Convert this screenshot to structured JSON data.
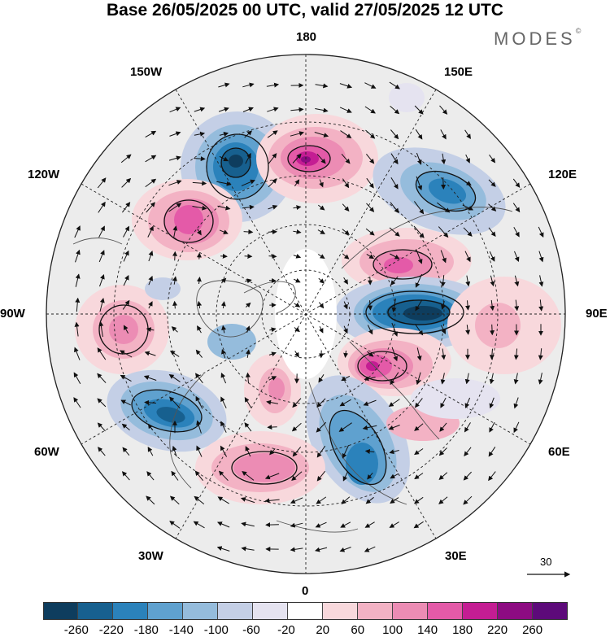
{
  "title": "Base 26/05/2025 00 UTC, valid 27/05/2025 12 UTC",
  "brand": {
    "name": "MODES",
    "mark": "©"
  },
  "longitude_labels": {
    "lon_180": "180",
    "lon_150e": "150E",
    "lon_120e": "120E",
    "lon_90e": "90E",
    "lon_60e": "60E",
    "lon_30e": "30E",
    "lon_0": "0",
    "lon_30w": "30W",
    "lon_60w": "60W",
    "lon_90w": "90W",
    "lon_120w": "120W",
    "lon_150w": "150W"
  },
  "reference_vector": {
    "label": "30"
  },
  "colorbar": {
    "colors": [
      "#0e3d5e",
      "#17608f",
      "#2b82bb",
      "#5fa1cf",
      "#95bcdc",
      "#c4cfe6",
      "#e5e3f0",
      "#ffffff",
      "#f8d8dc",
      "#f3b2c4",
      "#ec8cb4",
      "#e45aa8",
      "#c41d93",
      "#8d0b82",
      "#5d0a7a"
    ],
    "ticks": [
      "-260",
      "-220",
      "-180",
      "-140",
      "-100",
      "-60",
      "-20",
      "20",
      "60",
      "100",
      "140",
      "180",
      "220",
      "260"
    ]
  },
  "map": {
    "projection": "north-polar-stereographic",
    "field": "500 hPa geopotential height anomaly",
    "vectors": "wind arrows",
    "anomalies": [
      {
        "name": "low-150w-160w",
        "sign": "negative",
        "peak": -220
      },
      {
        "name": "high-170e",
        "sign": "positive",
        "peak": 220
      },
      {
        "name": "low-east-siberia",
        "sign": "negative",
        "peak": -180
      },
      {
        "name": "high-130w",
        "sign": "positive",
        "peak": 180
      },
      {
        "name": "high-west-siberia-north",
        "sign": "positive",
        "peak": 140
      },
      {
        "name": "low-central-siberia",
        "sign": "negative",
        "peak": -260
      },
      {
        "name": "high-ural",
        "sign": "positive",
        "peak": 180
      },
      {
        "name": "high-hudson-bay",
        "sign": "positive",
        "peak": 100
      },
      {
        "name": "low-labrador",
        "sign": "negative",
        "peak": -220
      },
      {
        "name": "low-scandinavia",
        "sign": "negative",
        "peak": -180
      },
      {
        "name": "high-north-atlantic",
        "sign": "positive",
        "peak": 140
      },
      {
        "name": "high-greenland-sea",
        "sign": "positive",
        "peak": 140
      }
    ]
  }
}
